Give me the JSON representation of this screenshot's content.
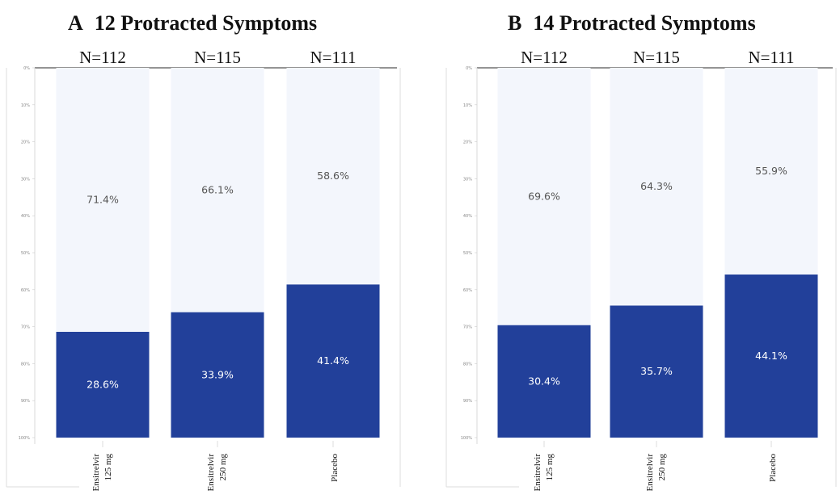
{
  "chart_data": [
    {
      "type": "bar",
      "panel": "A",
      "title": "12 Protracted Symptoms",
      "categories": [
        "Ensitrelvir 125 mg",
        "Ensitrelvir 250 mg",
        "Placebo"
      ],
      "category_lines": [
        [
          "Ensitrelvir",
          "125 mg"
        ],
        [
          "Ensitrelvir",
          "250 mg"
        ],
        [
          "Placebo"
        ]
      ],
      "n_labels": [
        "N=112",
        "N=115",
        "N=111"
      ],
      "y_ticks": [
        "0%",
        "10%",
        "20%",
        "30%",
        "40%",
        "50%",
        "60%",
        "70%",
        "80%",
        "90%",
        "100%"
      ],
      "ylim": [
        0,
        100
      ],
      "series": [
        {
          "values": [
            71.4,
            66.1,
            58.6
          ],
          "labels": [
            "71.4%",
            "66.1%",
            "58.6%"
          ],
          "color": "#f3f6fc"
        },
        {
          "values": [
            28.6,
            33.9,
            41.4
          ],
          "labels": [
            "28.6%",
            "33.9%",
            "41.4%"
          ],
          "color": "#22409a"
        }
      ]
    },
    {
      "type": "bar",
      "panel": "B",
      "title": "14 Protracted Symptoms",
      "categories": [
        "Ensitrelvir 125 mg",
        "Ensitrelvir 250 mg",
        "Placebo"
      ],
      "category_lines": [
        [
          "Ensitrelvir",
          "125 mg"
        ],
        [
          "Ensitrelvir",
          "250 mg"
        ],
        [
          "Placebo"
        ]
      ],
      "n_labels": [
        "N=112",
        "N=115",
        "N=111"
      ],
      "y_ticks": [
        "0%",
        "10%",
        "20%",
        "30%",
        "40%",
        "50%",
        "60%",
        "70%",
        "80%",
        "90%",
        "100%"
      ],
      "ylim": [
        0,
        100
      ],
      "series": [
        {
          "values": [
            69.6,
            64.3,
            55.9
          ],
          "labels": [
            "69.6%",
            "64.3%",
            "55.9%"
          ],
          "color": "#f3f6fc"
        },
        {
          "values": [
            30.4,
            35.7,
            44.1
          ],
          "labels": [
            "30.4%",
            "35.7%",
            "44.1%"
          ],
          "color": "#22409a"
        }
      ]
    }
  ]
}
